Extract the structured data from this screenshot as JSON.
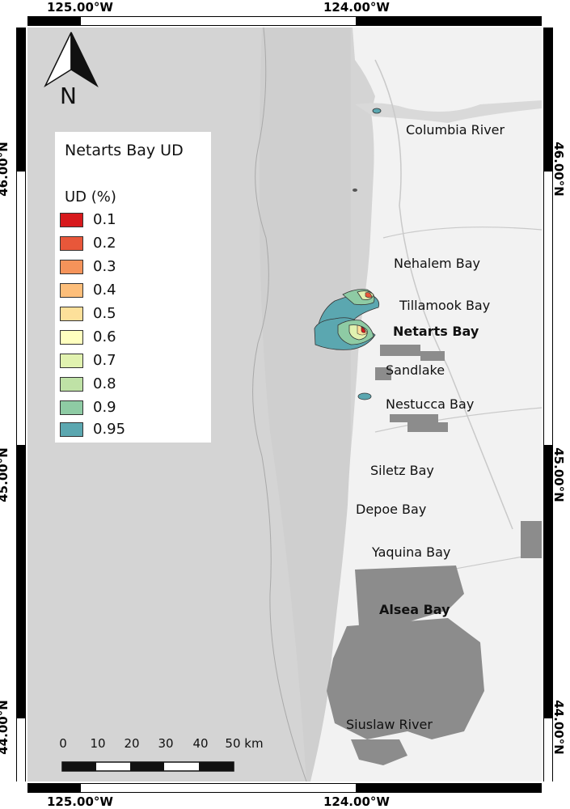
{
  "title": "Netarts Bay UD",
  "legend": {
    "subtitle": "UD (%)",
    "items": [
      {
        "label": "0.1",
        "color": "#d7191c"
      },
      {
        "label": "0.2",
        "color": "#e8573a"
      },
      {
        "label": "0.3",
        "color": "#f5935a"
      },
      {
        "label": "0.4",
        "color": "#fdbe7a"
      },
      {
        "label": "0.5",
        "color": "#fde09a"
      },
      {
        "label": "0.6",
        "color": "#ffffbf"
      },
      {
        "label": "0.7",
        "color": "#e1f2b0"
      },
      {
        "label": "0.8",
        "color": "#bfe2a6"
      },
      {
        "label": "0.9",
        "color": "#8ecba4"
      },
      {
        "label": "0.95",
        "color": "#5ba7b0"
      }
    ]
  },
  "coords": {
    "top_left": "125.00°W",
    "top_right": "124.00°W",
    "bottom_left": "125.00°W",
    "bottom_right": "124.00°W",
    "left_upper": "46.00°N",
    "left_middle": "45.00°N",
    "left_lower": "44.00°N",
    "right_upper": "46.00°N",
    "right_middle": "45.00°N",
    "right_lower": "44.00°N"
  },
  "places": [
    {
      "name": "Columbia River",
      "bold": false
    },
    {
      "name": "Nehalem Bay",
      "bold": false
    },
    {
      "name": "Tillamook Bay",
      "bold": false
    },
    {
      "name": "Netarts Bay",
      "bold": true
    },
    {
      "name": "Sandlake",
      "bold": false
    },
    {
      "name": "Nestucca Bay",
      "bold": false
    },
    {
      "name": "Siletz Bay",
      "bold": false
    },
    {
      "name": "Depoe Bay",
      "bold": false
    },
    {
      "name": "Yaquina Bay",
      "bold": false
    },
    {
      "name": "Alsea Bay",
      "bold": true
    },
    {
      "name": "Siuslaw River",
      "bold": false
    }
  ],
  "scale_bar": {
    "ticks": [
      "0",
      "10",
      "20",
      "30",
      "40",
      "50 km"
    ]
  },
  "north_arrow": {
    "label": "N",
    "icon": "north-arrow-icon"
  },
  "colors": {
    "ocean": "#d4d4d4",
    "land": "#f2f2f2",
    "forest": "#8c8c8c"
  }
}
